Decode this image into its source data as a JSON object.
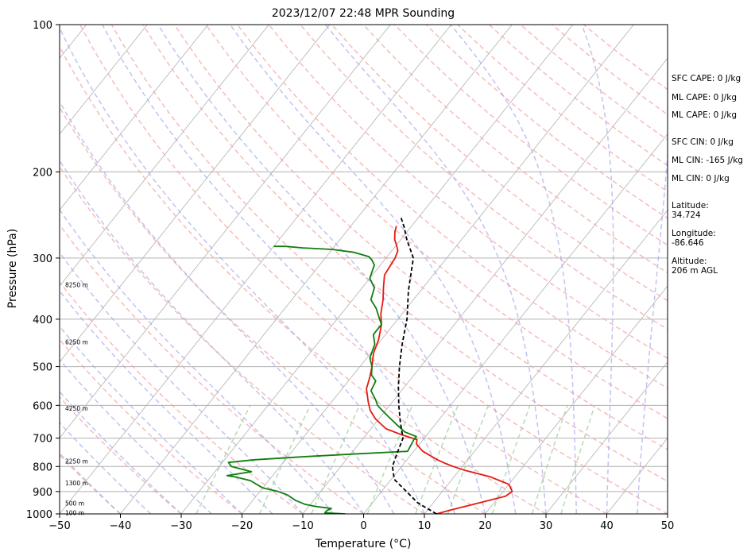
{
  "chart_data": {
    "type": "line",
    "title": "2023/12/07 22:48 MPR Sounding",
    "xlabel": "Temperature (°C)",
    "ylabel": "Pressure (hPa)",
    "xlim": [
      -50,
      50
    ],
    "ylim": [
      1000,
      100
    ],
    "y_scale": "log",
    "x_ticks": [
      -50,
      -40,
      -30,
      -20,
      -10,
      0,
      10,
      20,
      30,
      40,
      50
    ],
    "x_tick_labels": [
      "−50",
      "−40",
      "−30",
      "−20",
      "−10",
      "0",
      "10",
      "20",
      "30",
      "40",
      "50"
    ],
    "y_ticks": [
      1000,
      900,
      800,
      700,
      600,
      500,
      400,
      300,
      200,
      100
    ],
    "y_tick_labels": [
      "1000",
      "900",
      "800",
      "700",
      "600",
      "500",
      "400",
      "300",
      "200",
      "100"
    ],
    "grid": true,
    "height_labels": [
      {
        "p": 995,
        "text": "100 m"
      },
      {
        "p": 950,
        "text": "500 m"
      },
      {
        "p": 865,
        "text": "1300 m"
      },
      {
        "p": 780,
        "text": "2250 m"
      },
      {
        "p": 608,
        "text": "4250 m"
      },
      {
        "p": 445,
        "text": "6250 m"
      },
      {
        "p": 340,
        "text": "8250 m"
      }
    ],
    "series": [
      {
        "color": "#e8190f",
        "points": [
          [
            12,
            1000
          ],
          [
            14,
            980
          ],
          [
            17.5,
            950
          ],
          [
            21,
            920
          ],
          [
            21.5,
            900
          ],
          [
            20,
            870
          ],
          [
            16,
            840
          ],
          [
            11,
            815
          ],
          [
            8.5,
            800
          ],
          [
            7,
            790
          ],
          [
            5,
            775
          ],
          [
            1.5,
            745
          ],
          [
            -0.5,
            720
          ],
          [
            -1,
            705
          ],
          [
            -4,
            690
          ],
          [
            -7.5,
            670
          ],
          [
            -10.5,
            640
          ],
          [
            -12.5,
            615
          ],
          [
            -14,
            590
          ],
          [
            -16,
            555
          ],
          [
            -17,
            525
          ],
          [
            -18,
            500
          ],
          [
            -19.5,
            470
          ],
          [
            -20.5,
            440
          ],
          [
            -22,
            410
          ],
          [
            -23.5,
            390
          ],
          [
            -25,
            365
          ],
          [
            -26.5,
            345
          ],
          [
            -28,
            325
          ],
          [
            -28.5,
            300
          ],
          [
            -29,
            290
          ],
          [
            -30,
            282
          ],
          [
            -31,
            275
          ],
          [
            -32,
            265
          ],
          [
            -32.5,
            258
          ]
        ]
      },
      {
        "color": "#0f7e0f",
        "points": [
          [
            -3,
            1000
          ],
          [
            -6.5,
            995
          ],
          [
            -6.5,
            985
          ],
          [
            -6,
            975
          ],
          [
            -9,
            965
          ],
          [
            -11,
            955
          ],
          [
            -13,
            938
          ],
          [
            -15,
            915
          ],
          [
            -17,
            900
          ],
          [
            -20,
            885
          ],
          [
            -23,
            855
          ],
          [
            -26,
            840
          ],
          [
            -27.5,
            835
          ],
          [
            -24,
            820
          ],
          [
            -28,
            800
          ],
          [
            -29,
            785
          ],
          [
            -25,
            775
          ],
          [
            -18,
            765
          ],
          [
            -10,
            755
          ],
          [
            -1,
            745
          ],
          [
            -1.5,
            705
          ],
          [
            -1.5,
            695
          ],
          [
            -4,
            680
          ],
          [
            -6,
            660
          ],
          [
            -9,
            630
          ],
          [
            -11,
            610
          ],
          [
            -12,
            600
          ],
          [
            -13,
            585
          ],
          [
            -15,
            560
          ],
          [
            -15.5,
            535
          ],
          [
            -17,
            520
          ],
          [
            -18,
            500
          ],
          [
            -19.5,
            480
          ],
          [
            -20.5,
            450
          ],
          [
            -22,
            430
          ],
          [
            -22,
            410
          ],
          [
            -23,
            400
          ],
          [
            -25,
            380
          ],
          [
            -27,
            365
          ],
          [
            -28,
            345
          ],
          [
            -30,
            330
          ],
          [
            -31,
            310
          ],
          [
            -32,
            303
          ],
          [
            -33,
            298
          ],
          [
            -36,
            292
          ],
          [
            -40,
            288
          ],
          [
            -45,
            286
          ],
          [
            -48,
            284
          ],
          [
            -50,
            284
          ]
        ]
      },
      {
        "color": "#000000",
        "dashed": true,
        "points": [
          [
            12,
            1000
          ],
          [
            7.5,
            950
          ],
          [
            0.5,
            850
          ],
          [
            -1.5,
            800
          ],
          [
            -2.5,
            750
          ],
          [
            -3.5,
            700
          ],
          [
            -6,
            650
          ],
          [
            -8.5,
            600
          ],
          [
            -11,
            550
          ],
          [
            -13.5,
            500
          ],
          [
            -16,
            450
          ],
          [
            -18.5,
            400
          ],
          [
            -22,
            350
          ],
          [
            -25.5,
            300
          ],
          [
            -29,
            275
          ],
          [
            -31,
            260
          ],
          [
            -33,
            247
          ]
        ]
      }
    ]
  },
  "indices": [
    "SFC CAPE: 0 J/kg",
    "ML CAPE: 0 J/kg",
    "ML CAPE: 0 J/kg",
    "SFC CIN: 0 J/kg",
    "ML CIN: -165 J/kg",
    "ML CIN: 0 J/kg",
    "Latitude:\n34.724",
    "Longitude:\n-86.646",
    "Altitude:\n206 m AGL"
  ],
  "colors": {
    "isotherm": "#b0b0b0",
    "isobar": "#b0b0b0",
    "dry_adiabat": "#f4a6a6",
    "moist_adiabat": "#a8a8ec",
    "mixing_ratio": "#9dcf9d"
  }
}
